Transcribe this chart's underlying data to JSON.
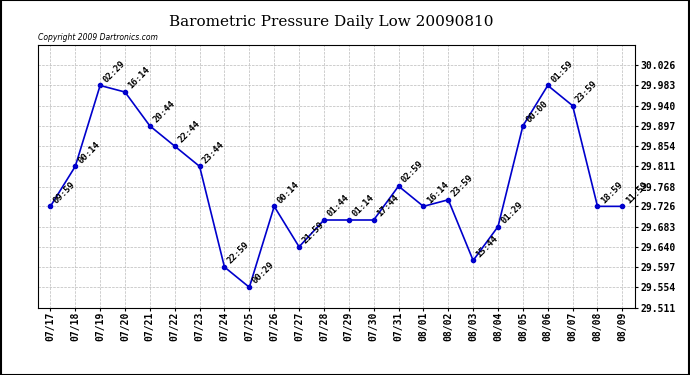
{
  "title": "Barometric Pressure Daily Low 20090810",
  "copyright": "Copyright 2009 Dartronics.com",
  "x_labels": [
    "07/17",
    "07/18",
    "07/19",
    "07/20",
    "07/21",
    "07/22",
    "07/23",
    "07/24",
    "07/25",
    "07/26",
    "07/27",
    "07/28",
    "07/29",
    "07/30",
    "07/31",
    "08/01",
    "08/02",
    "08/03",
    "08/04",
    "08/05",
    "08/06",
    "08/07",
    "08/08",
    "08/09"
  ],
  "x_values": [
    0,
    1,
    2,
    3,
    4,
    5,
    6,
    7,
    8,
    9,
    10,
    11,
    12,
    13,
    14,
    15,
    16,
    17,
    18,
    19,
    20,
    21,
    22,
    23
  ],
  "y_values": [
    29.726,
    29.811,
    29.983,
    29.969,
    29.897,
    29.854,
    29.811,
    29.597,
    29.554,
    29.726,
    29.64,
    29.697,
    29.697,
    29.697,
    29.769,
    29.726,
    29.74,
    29.611,
    29.683,
    29.897,
    29.983,
    29.94,
    29.726,
    29.726
  ],
  "point_labels": [
    "09:59",
    "00:14",
    "02:29",
    "16:14",
    "20:44",
    "22:44",
    "23:44",
    "22:59",
    "00:29",
    "00:14",
    "21:59",
    "01:44",
    "01:14",
    "17:44",
    "02:59",
    "16:14",
    "23:59",
    "15:44",
    "01:29",
    "00:00",
    "01:59",
    "23:59",
    "18:59",
    "11:59"
  ],
  "ylim_min": 29.511,
  "ylim_max": 30.069,
  "yticks": [
    29.511,
    29.554,
    29.597,
    29.64,
    29.683,
    29.726,
    29.768,
    29.811,
    29.854,
    29.897,
    29.94,
    29.983,
    30.026
  ],
  "line_color": "#0000cc",
  "marker_color": "#0000cc",
  "bg_color": "#ffffff",
  "grid_color": "#bbbbbb",
  "title_fontsize": 11,
  "tick_fontsize": 7,
  "point_label_fontsize": 6.5
}
